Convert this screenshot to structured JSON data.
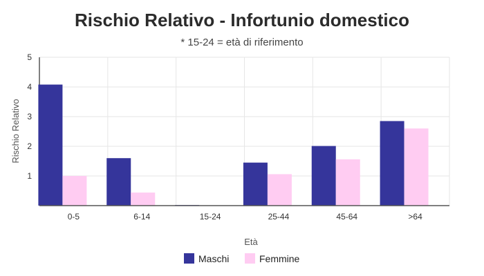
{
  "chart_data": {
    "type": "bar",
    "title": "Rischio Relativo - Infortunio domestico",
    "subtitle": "* 15-24 = età di riferimento",
    "xlabel": "Età",
    "ylabel": "Rischio Relativo",
    "ylim": [
      0,
      5
    ],
    "yticks": [
      "5",
      "4",
      "3",
      "2",
      "1"
    ],
    "categories": [
      "0-5",
      "6-14",
      "15-24",
      "25-44",
      "45-64",
      ">64"
    ],
    "series": [
      {
        "name": "Maschi",
        "color": "#35359b",
        "values": [
          4.08,
          1.6,
          0.02,
          1.45,
          2.01,
          2.85
        ]
      },
      {
        "name": "Femmine",
        "color": "#ffccf2",
        "values": [
          1.0,
          0.44,
          0.0,
          1.06,
          1.56,
          2.6
        ]
      }
    ],
    "grid": true,
    "legend": "bottom"
  }
}
